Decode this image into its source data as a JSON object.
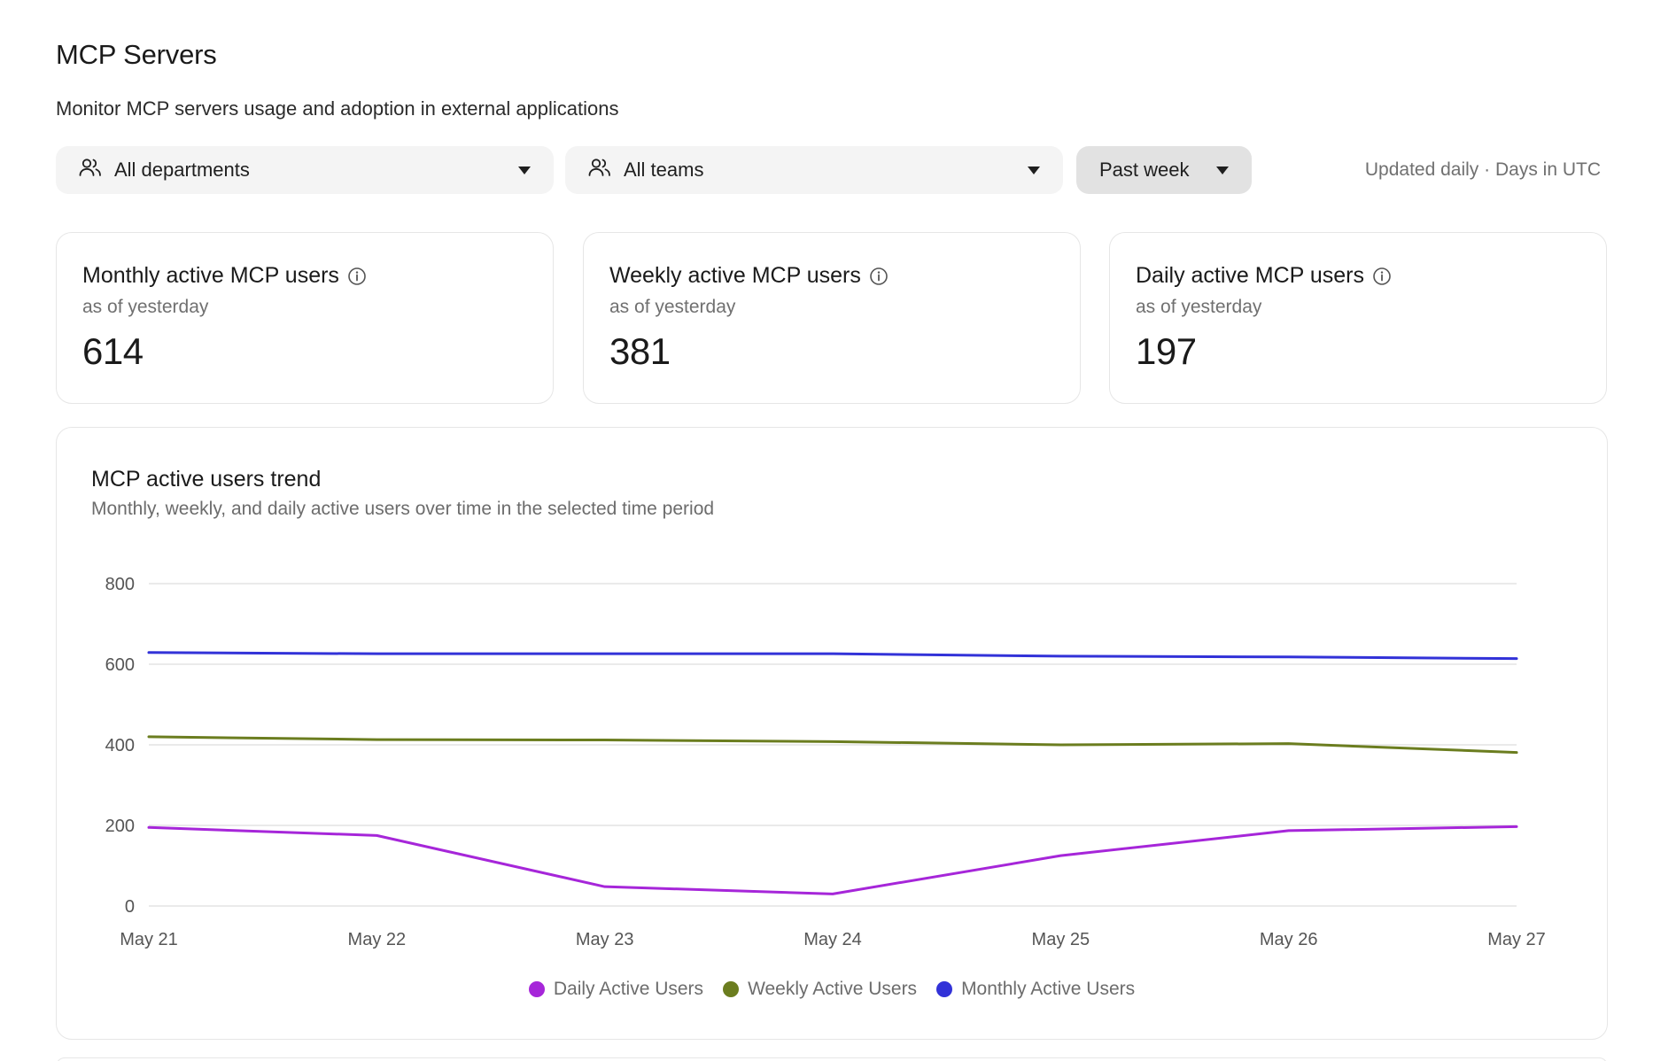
{
  "header": {
    "title": "MCP Servers",
    "subtitle": "Monitor MCP servers usage and adoption in external applications"
  },
  "filters": {
    "department": {
      "value": "All departments",
      "icon": "users-icon"
    },
    "team": {
      "value": "All teams",
      "icon": "users-icon"
    },
    "period": {
      "value": "Past week"
    },
    "note": "Updated daily · Days in UTC"
  },
  "stats": [
    {
      "title": "Monthly active MCP users",
      "sub": "as of yesterday",
      "value": "614"
    },
    {
      "title": "Weekly active MCP users",
      "sub": "as of yesterday",
      "value": "381"
    },
    {
      "title": "Daily active MCP users",
      "sub": "as of yesterday",
      "value": "197"
    }
  ],
  "trend": {
    "title": "MCP active users trend",
    "subtitle": "Monthly, weekly, and daily active users over time in the selected time period"
  },
  "chart_data": {
    "type": "line",
    "title": "MCP active users trend",
    "categories": [
      "May 21",
      "May 22",
      "May 23",
      "May 24",
      "May 25",
      "May 26",
      "May 27"
    ],
    "yticks": [
      "0",
      "200",
      "400",
      "600",
      "800"
    ],
    "ylim": [
      0,
      800
    ],
    "grid": true,
    "legend_position": "bottom",
    "series": [
      {
        "name": "Daily Active Users",
        "color": "#a626d9",
        "values": [
          195,
          175,
          48,
          30,
          125,
          187,
          197
        ]
      },
      {
        "name": "Weekly Active Users",
        "color": "#6b7d1f",
        "values": [
          420,
          413,
          412,
          408,
          400,
          403,
          381
        ]
      },
      {
        "name": "Monthly Active Users",
        "color": "#3232d8",
        "values": [
          629,
          626,
          626,
          626,
          620,
          618,
          614
        ]
      }
    ]
  }
}
